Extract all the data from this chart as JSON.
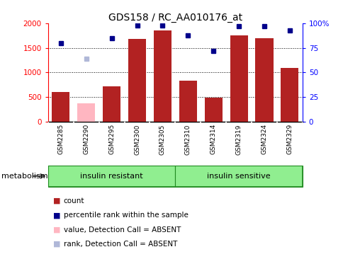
{
  "title": "GDS158 / RC_AA010176_at",
  "samples": [
    "GSM2285",
    "GSM2290",
    "GSM2295",
    "GSM2300",
    "GSM2305",
    "GSM2310",
    "GSM2314",
    "GSM2319",
    "GSM2324",
    "GSM2329"
  ],
  "counts": [
    600,
    380,
    720,
    1680,
    1850,
    840,
    490,
    1750,
    1700,
    1100
  ],
  "count_absent": [
    false,
    true,
    false,
    false,
    false,
    false,
    false,
    false,
    false,
    false
  ],
  "ranks": [
    80,
    64,
    85,
    98,
    98,
    88,
    72,
    97,
    97,
    93
  ],
  "rank_absent": [
    false,
    true,
    false,
    false,
    false,
    false,
    false,
    false,
    false,
    false
  ],
  "bar_color_normal": "#b22222",
  "bar_color_absent": "#ffb6c1",
  "dot_color_normal": "#00008b",
  "dot_color_absent": "#b0b8d8",
  "ylim_left": [
    0,
    2000
  ],
  "ylim_right": [
    0,
    100
  ],
  "yticks_left": [
    0,
    500,
    1000,
    1500,
    2000
  ],
  "yticks_right": [
    0,
    25,
    50,
    75,
    100
  ],
  "ytick_labels_right": [
    "0",
    "25",
    "50",
    "75",
    "100%"
  ],
  "group1_label": "insulin resistant",
  "group2_label": "insulin sensitive",
  "group1_indices": [
    0,
    1,
    2,
    3,
    4
  ],
  "group2_indices": [
    5,
    6,
    7,
    8,
    9
  ],
  "metabolism_label": "metabolism",
  "group_bg_color": "#90ee90",
  "tick_area_color": "#d3d3d3",
  "legend_items": [
    {
      "label": "count",
      "color": "#b22222"
    },
    {
      "label": "percentile rank within the sample",
      "color": "#00008b"
    },
    {
      "label": "value, Detection Call = ABSENT",
      "color": "#ffb6c1"
    },
    {
      "label": "rank, Detection Call = ABSENT",
      "color": "#b0b8d8"
    }
  ]
}
